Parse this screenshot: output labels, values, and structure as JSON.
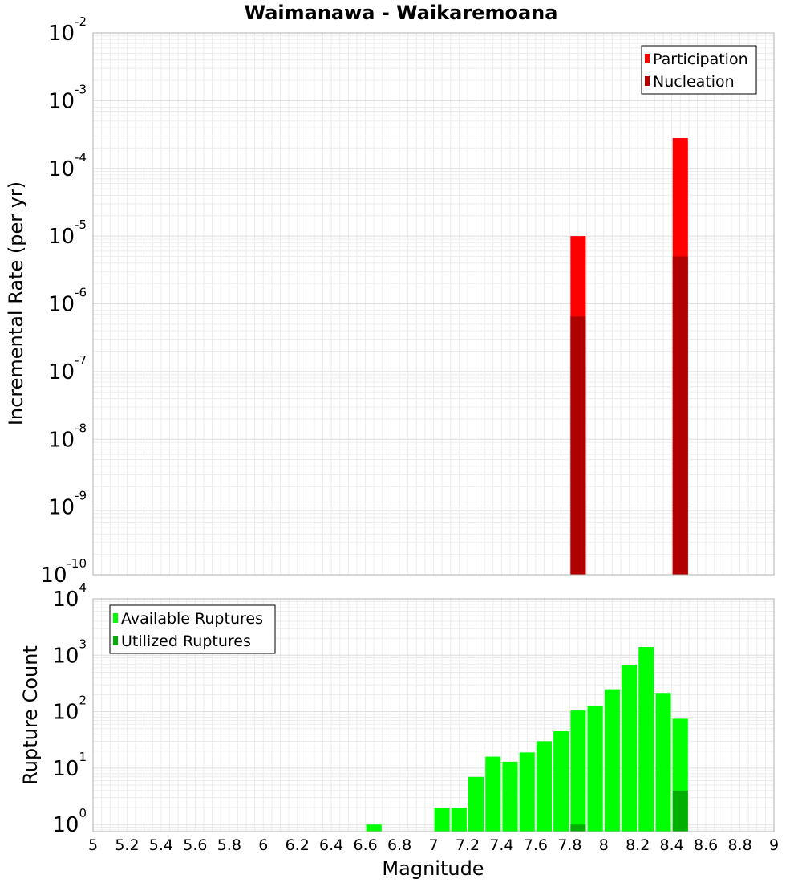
{
  "title": "Waimanawa - Waikaremoana",
  "x_axis": {
    "label": "Magnitude",
    "min": 5,
    "max": 9,
    "ticks": [
      "5",
      "5.2",
      "5.4",
      "5.6",
      "5.8",
      "6",
      "6.2",
      "6.4",
      "6.6",
      "6.8",
      "7",
      "7.2",
      "7.4",
      "7.6",
      "7.8",
      "8",
      "8.2",
      "8.4",
      "8.6",
      "8.8",
      "9"
    ]
  },
  "chart_data": [
    {
      "type": "bar",
      "ylabel": "Incremental Rate (per yr)",
      "yscale": "log",
      "ylim": [
        1e-10,
        0.01
      ],
      "y_tick_exponents": [
        "-10",
        "-9",
        "-8",
        "-7",
        "-6",
        "-5",
        "-4",
        "-3",
        "-2"
      ],
      "y_tick_base": "10",
      "grid": true,
      "legend_position": "top-right",
      "colors": {
        "Participation": "#ff0000",
        "Nucleation": "#b00000"
      },
      "series": [
        {
          "name": "Participation",
          "x": [
            7.85,
            8.45
          ],
          "values": [
            1e-05,
            0.00028
          ]
        },
        {
          "name": "Nucleation",
          "x": [
            7.85,
            8.45
          ],
          "values": [
            6.5e-07,
            5e-06
          ]
        }
      ]
    },
    {
      "type": "bar",
      "ylabel": "Rupture Count",
      "yscale": "log",
      "ylim": [
        0.75,
        10000
      ],
      "y_tick_exponents": [
        "0",
        "1",
        "2",
        "3",
        "4"
      ],
      "y_tick_base": "10",
      "grid": true,
      "legend_position": "top-left",
      "colors": {
        "Available Ruptures": "#00ff00",
        "Utilized Ruptures": "#00b000"
      },
      "series": [
        {
          "name": "Available Ruptures",
          "x": [
            6.65,
            7.05,
            7.15,
            7.25,
            7.35,
            7.45,
            7.55,
            7.65,
            7.75,
            7.85,
            7.95,
            8.05,
            8.15,
            8.25,
            8.35,
            8.45
          ],
          "values": [
            1,
            2,
            2,
            7,
            16,
            13,
            19,
            30,
            45,
            105,
            125,
            250,
            680,
            1400,
            215,
            75
          ]
        },
        {
          "name": "Utilized Ruptures",
          "x": [
            7.85,
            8.45
          ],
          "values": [
            1,
            4
          ]
        }
      ]
    }
  ]
}
